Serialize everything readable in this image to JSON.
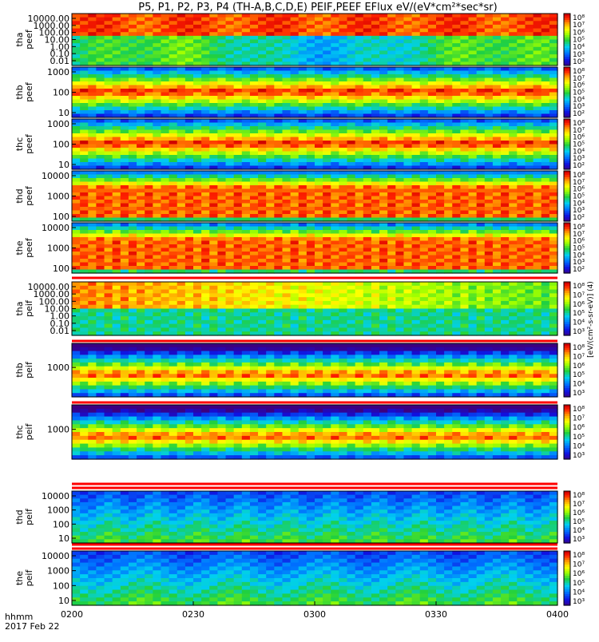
{
  "title": "P5, P1, P2, P3, P4 (TH-A,B,C,D,E) PEIF,PEEF EFlux eV/(eV*cm²*sec*sr)",
  "footer": {
    "time_label": "hhmm",
    "date_label": "2017 Feb 22"
  },
  "x_ticks": [
    "0200",
    "0230",
    "0300",
    "0330",
    "0400"
  ],
  "colorbar_side_label": "[eV/(cm²-s-sr-eV)] (4)",
  "colors": {
    "axis": "#000000",
    "marker_red": "#ff0000"
  },
  "chart_data": {
    "type": "heatmap",
    "x_range": [
      "02:00",
      "04:00"
    ],
    "x_tick_values": [
      "02:00",
      "02:30",
      "03:00",
      "03:30",
      "04:00"
    ],
    "colorscale": "rainbow (purple-blue-cyan-green-yellow-red)",
    "panels": [
      {
        "probe": "tha",
        "product": "peef",
        "ylabel": [
          "tha",
          "peef"
        ],
        "yscale": "log",
        "yticks": [
          "10000.00",
          "1000.00",
          "100.00",
          "10.00",
          "1.00",
          "0.10",
          "0.01"
        ],
        "cbar_ticks": [
          "10⁸",
          "10⁷",
          "10⁶",
          "10⁵",
          "10⁴",
          "10³",
          "10²"
        ]
      },
      {
        "probe": "thb",
        "product": "peef",
        "ylabel": [
          "thb",
          "peef"
        ],
        "yscale": "log",
        "yticks": [
          "1000",
          "100",
          "10"
        ],
        "cbar_ticks": [
          "10⁸",
          "10⁷",
          "10⁶",
          "10⁵",
          "10⁴",
          "10³",
          "10²"
        ]
      },
      {
        "probe": "thc",
        "product": "peef",
        "ylabel": [
          "thc",
          "peef"
        ],
        "yscale": "log",
        "yticks": [
          "1000",
          "100",
          "10"
        ],
        "cbar_ticks": [
          "10⁸",
          "10⁷",
          "10⁶",
          "10⁵",
          "10⁴",
          "10³",
          "10²"
        ]
      },
      {
        "probe": "thd",
        "product": "peef",
        "ylabel": [
          "thd",
          "peef"
        ],
        "yscale": "log",
        "yticks": [
          "10000",
          "1000",
          "100"
        ],
        "cbar_ticks": [
          "10⁸",
          "10⁷",
          "10⁶",
          "10⁵",
          "10⁴",
          "10³",
          "10²"
        ]
      },
      {
        "probe": "the",
        "product": "peef",
        "ylabel": [
          "the",
          "peef"
        ],
        "yscale": "log",
        "yticks": [
          "10000",
          "1000",
          "100"
        ],
        "cbar_ticks": [
          "10⁸",
          "10⁷",
          "10⁶",
          "10⁵",
          "10⁴",
          "10³",
          "10²"
        ]
      },
      {
        "probe": "tha",
        "product": "peif",
        "ylabel": [
          "tha",
          "peif"
        ],
        "yscale": "log",
        "yticks": [
          "10000.00",
          "1000.00",
          "100.00",
          "10.00",
          "1.00",
          "0.10",
          "0.01"
        ],
        "cbar_ticks": [
          "10⁸",
          "10⁷",
          "10⁶",
          "10⁵",
          "10⁴",
          "10³"
        ]
      },
      {
        "probe": "thb",
        "product": "peif",
        "ylabel": [
          "thb",
          "peif"
        ],
        "yscale": "log",
        "yticks": [
          "1000"
        ],
        "cbar_ticks": [
          "10⁸",
          "10⁷",
          "10⁶",
          "10⁵",
          "10⁴",
          "10³"
        ]
      },
      {
        "probe": "thc",
        "product": "peif",
        "ylabel": [
          "thc",
          "peif"
        ],
        "yscale": "log",
        "yticks": [
          "1000"
        ],
        "cbar_ticks": [
          "10⁸",
          "10⁷",
          "10⁶",
          "10⁵",
          "10⁴",
          "10³"
        ]
      },
      {
        "probe": "thd",
        "product": "peif",
        "ylabel": [
          "thd",
          "peif"
        ],
        "yscale": "log",
        "yticks": [
          "10000",
          "1000",
          "100",
          "10"
        ],
        "cbar_ticks": [
          "10⁸",
          "10⁷",
          "10⁶",
          "10⁵",
          "10⁴",
          "10³"
        ]
      },
      {
        "probe": "the",
        "product": "peif",
        "ylabel": [
          "the",
          "peif"
        ],
        "yscale": "log",
        "yticks": [
          "10000",
          "1000",
          "100",
          "10"
        ],
        "cbar_ticks": [
          "10⁸",
          "10⁷",
          "10⁶",
          "10⁵",
          "10⁴",
          "10³"
        ]
      }
    ]
  }
}
